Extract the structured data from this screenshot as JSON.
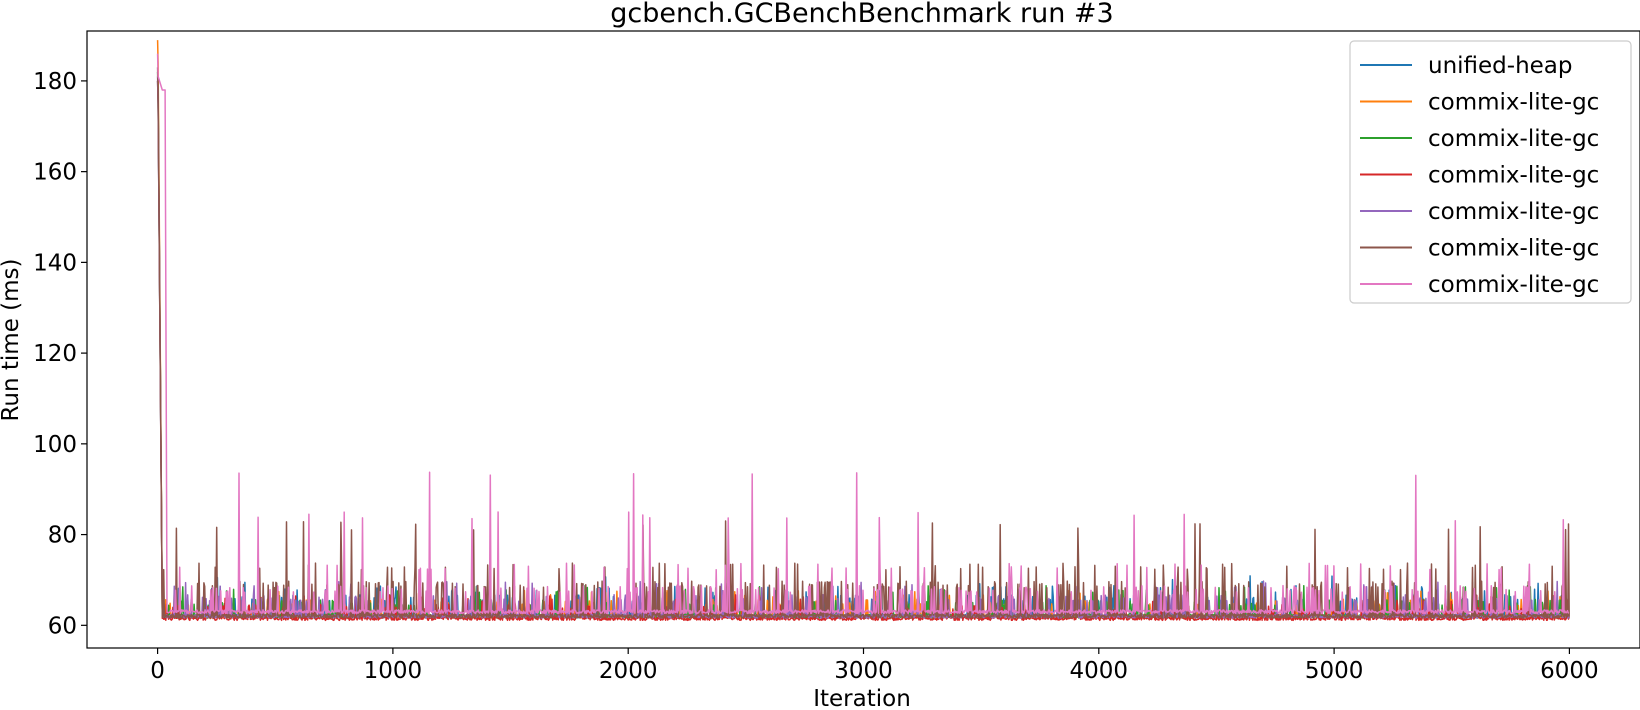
{
  "chart_data": {
    "type": "line",
    "title": "gcbench.GCBenchBenchmark run #3",
    "xlabel": "Iteration",
    "ylabel": "Run time (ms)",
    "xlim": [
      -300,
      6300
    ],
    "ylim": [
      55,
      191
    ],
    "x_ticks": [
      0,
      1000,
      2000,
      3000,
      4000,
      5000,
      6000
    ],
    "y_ticks": [
      60,
      80,
      100,
      120,
      140,
      160,
      180
    ],
    "x_tick_labels": [
      "0",
      "1000",
      "2000",
      "3000",
      "4000",
      "5000",
      "6000"
    ],
    "y_tick_labels": [
      "60",
      "80",
      "100",
      "120",
      "140",
      "160",
      "180"
    ],
    "grid": false,
    "legend_position": "top-right",
    "iterations": 6000,
    "series": [
      {
        "name": "unified-heap",
        "color": "#1f77b4",
        "first_value": 180,
        "baseline": 62,
        "pattern": "periodic spikes",
        "spike_heights": [
          66,
          68,
          70
        ]
      },
      {
        "name": "commix-lite-gc",
        "color": "#ff7f0e",
        "first_value": 189,
        "baseline": 62,
        "pattern": "periodic spikes",
        "spike_heights": [
          65,
          67
        ]
      },
      {
        "name": "commix-lite-gc",
        "color": "#2ca02c",
        "first_value": 182,
        "baseline": 62,
        "pattern": "periodic spikes",
        "spike_heights": [
          65,
          68
        ]
      },
      {
        "name": "commix-lite-gc",
        "color": "#d62728",
        "first_value": 180,
        "baseline": 61.5,
        "pattern": "periodic spikes",
        "spike_heights": [
          64,
          66
        ]
      },
      {
        "name": "commix-lite-gc",
        "color": "#9467bd",
        "first_value": 181,
        "baseline": 62,
        "pattern": "periodic spikes",
        "spike_heights": [
          66,
          69
        ]
      },
      {
        "name": "commix-lite-gc",
        "color": "#8c564b",
        "first_value": 183,
        "baseline": 62,
        "pattern": "periodic spikes",
        "spike_heights": [
          69,
          73,
          82
        ]
      },
      {
        "name": "commix-lite-gc",
        "color": "#e377c2",
        "first_value": 186,
        "baseline": 63,
        "pattern": "periodic spikes",
        "spike_heights": [
          68,
          73,
          84,
          93
        ]
      }
    ]
  }
}
